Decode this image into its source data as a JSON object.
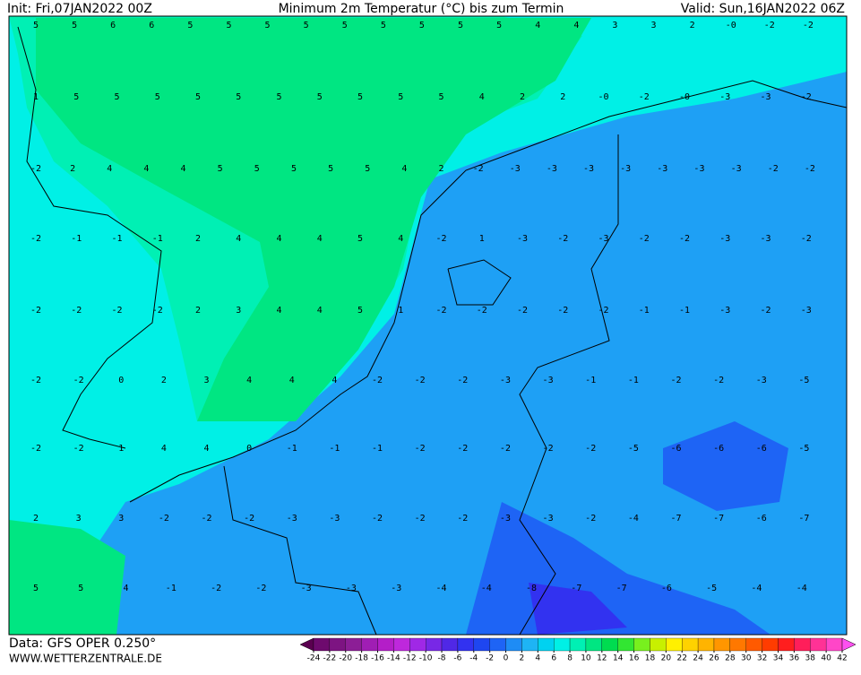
{
  "header": {
    "init": "Init: Fri,07JAN2022 00Z",
    "title": "Minimum 2m Temperatur (°C) bis zum Termin",
    "valid": "Valid: Sun,16JAN2022 06Z"
  },
  "footer": {
    "data": "Data: GFS OPER 0.250°",
    "site": "WWW.WETTERZENTRALE.DE"
  },
  "map_labels": [
    [
      "5",
      "5",
      "6",
      "6",
      "5",
      "5",
      "5",
      "5",
      "5",
      "5",
      "5",
      "5",
      "5",
      "4",
      "4",
      "3",
      "3",
      "2",
      "-0",
      "-2",
      "-2"
    ],
    [
      "1",
      "5",
      "5",
      "5",
      "5",
      "5",
      "5",
      "5",
      "5",
      "5",
      "5",
      "4",
      "2",
      "2",
      "-0",
      "-2",
      "-0",
      "-3",
      "-3",
      "-2"
    ],
    [
      "-2",
      "2",
      "4",
      "4",
      "4",
      "5",
      "5",
      "5",
      "5",
      "5",
      "4",
      "2",
      "-2",
      "-3",
      "-3",
      "-3",
      "-3",
      "-3",
      "-3",
      "-3",
      "-2",
      "-2"
    ],
    [
      "-2",
      "-1",
      "-1",
      "-1",
      "2",
      "4",
      "4",
      "4",
      "5",
      "4",
      "-2",
      "1",
      "-3",
      "-2",
      "-3",
      "-2",
      "-2",
      "-3",
      "-3",
      "-2"
    ],
    [
      "-2",
      "-2",
      "-2",
      "-2",
      "2",
      "3",
      "4",
      "4",
      "5",
      "1",
      "-2",
      "-2",
      "-2",
      "-2",
      "-2",
      "-1",
      "-1",
      "-3",
      "-2",
      "-3"
    ],
    [
      "-2",
      "-2",
      "0",
      "2",
      "3",
      "4",
      "4",
      "4",
      "-2",
      "-2",
      "-2",
      "-3",
      "-3",
      "-1",
      "-1",
      "-2",
      "-2",
      "-3",
      "-5"
    ],
    [
      "-2",
      "-2",
      "1",
      "4",
      "4",
      "0",
      "-1",
      "-1",
      "-1",
      "-2",
      "-2",
      "-2",
      "-2",
      "-2",
      "-5",
      "-6",
      "-6",
      "-6",
      "-5"
    ],
    [
      "2",
      "3",
      "3",
      "-2",
      "-2",
      "-2",
      "-3",
      "-3",
      "-2",
      "-2",
      "-2",
      "-3",
      "-3",
      "-2",
      "-4",
      "-7",
      "-7",
      "-6",
      "-7"
    ],
    [
      "5",
      "5",
      "4",
      "-1",
      "-2",
      "-2",
      "-3",
      "-3",
      "-3",
      "-4",
      "-4",
      "-8",
      "-7",
      "-7",
      "-6",
      "-5",
      "-4",
      "-4"
    ]
  ],
  "colorbar": {
    "ticks": [
      -24,
      -22,
      -20,
      -18,
      -16,
      -14,
      -12,
      -10,
      -8,
      -6,
      -4,
      -2,
      0,
      2,
      4,
      6,
      8,
      10,
      12,
      14,
      16,
      18,
      20,
      22,
      24,
      26,
      28,
      30,
      32,
      34,
      36,
      38,
      40,
      42
    ],
    "colors": [
      "#5a0050",
      "#6e0a6e",
      "#7d1482",
      "#8c1e96",
      "#a01eb4",
      "#b41ec8",
      "#be28dc",
      "#a028e6",
      "#7828e6",
      "#5028e6",
      "#3232f0",
      "#1e46f0",
      "#1e64f5",
      "#1e8cf5",
      "#1eb4f5",
      "#00d2f0",
      "#00f0e6",
      "#00f0b4",
      "#00e682",
      "#00dc50",
      "#32e632",
      "#78f01e",
      "#c8f000",
      "#fff000",
      "#ffd200",
      "#ffb400",
      "#ff9600",
      "#ff7800",
      "#ff5a00",
      "#ff3c00",
      "#ff1e1e",
      "#ff1e5a",
      "#ff3296",
      "#ff46c8",
      "#ff50f0"
    ]
  }
}
